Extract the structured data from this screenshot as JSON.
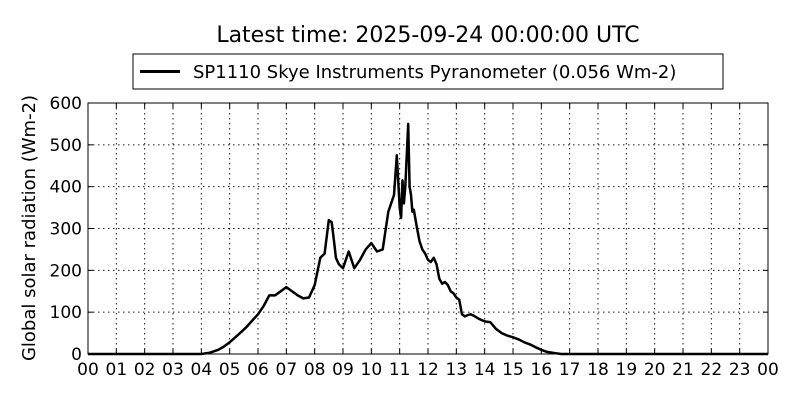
{
  "chart_data": {
    "type": "line",
    "title": "Latest time: 2025-09-24 00:00:00 UTC",
    "xlabel": "",
    "ylabel": "Global solar radiation (Wm-2)",
    "xlim": [
      0,
      24
    ],
    "ylim": [
      0,
      600
    ],
    "grid": true,
    "legend_position": "top-center",
    "x_ticks": [
      "00",
      "01",
      "02",
      "03",
      "04",
      "05",
      "06",
      "07",
      "08",
      "09",
      "10",
      "11",
      "12",
      "13",
      "14",
      "15",
      "16",
      "17",
      "18",
      "19",
      "20",
      "21",
      "22",
      "23",
      "00"
    ],
    "y_ticks": [
      "0",
      "100",
      "200",
      "300",
      "400",
      "500",
      "600"
    ],
    "series": [
      {
        "name": "SP1110 Skye Instruments Pyranometer (0.056 Wm-2)",
        "color": "#000000",
        "x": [
          0,
          4.0,
          4.3,
          4.6,
          4.8,
          5.0,
          5.2,
          5.4,
          5.6,
          5.8,
          6.0,
          6.2,
          6.4,
          6.6,
          6.8,
          7.0,
          7.2,
          7.4,
          7.6,
          7.8,
          8.0,
          8.2,
          8.35,
          8.5,
          8.6,
          8.7,
          8.75,
          8.85,
          9.0,
          9.2,
          9.4,
          9.6,
          9.8,
          10.0,
          10.2,
          10.4,
          10.6,
          10.8,
          10.9,
          11.0,
          11.05,
          11.1,
          11.15,
          11.2,
          11.3,
          11.35,
          11.4,
          11.45,
          11.5,
          11.6,
          11.7,
          11.8,
          11.9,
          12.0,
          12.1,
          12.2,
          12.3,
          12.4,
          12.5,
          12.6,
          12.7,
          12.8,
          12.9,
          13.0,
          13.1,
          13.2,
          13.3,
          13.4,
          13.5,
          13.6,
          13.7,
          13.8,
          14.0,
          14.2,
          14.4,
          14.6,
          14.8,
          15.0,
          15.2,
          15.4,
          15.6,
          15.8,
          16.0,
          16.2,
          16.5,
          16.7,
          17.0,
          24.0
        ],
        "y": [
          0,
          0,
          3,
          10,
          18,
          28,
          40,
          52,
          65,
          80,
          95,
          115,
          140,
          140,
          150,
          160,
          150,
          140,
          133,
          135,
          165,
          230,
          240,
          320,
          315,
          260,
          230,
          215,
          205,
          245,
          205,
          225,
          250,
          265,
          245,
          250,
          340,
          380,
          475,
          350,
          325,
          415,
          360,
          400,
          550,
          400,
          380,
          340,
          345,
          305,
          270,
          250,
          240,
          225,
          220,
          230,
          215,
          180,
          168,
          172,
          165,
          150,
          145,
          135,
          130,
          95,
          90,
          93,
          95,
          92,
          88,
          84,
          78,
          76,
          60,
          50,
          44,
          40,
          35,
          28,
          23,
          16,
          10,
          5,
          2,
          0,
          0,
          0
        ]
      }
    ]
  }
}
